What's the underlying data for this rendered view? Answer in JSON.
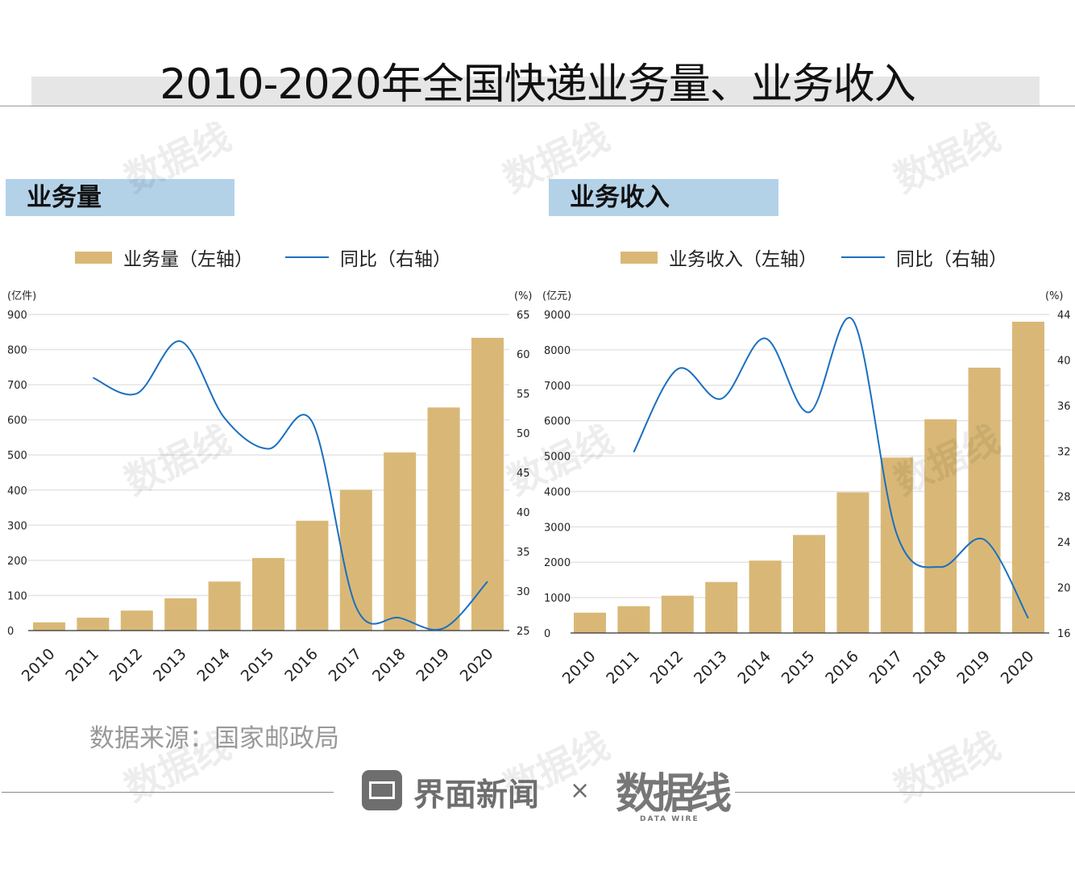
{
  "title": "2010-2020年全国快递业务量、业务收入",
  "source": "数据来源：国家邮政局",
  "footer": {
    "brand1": "界面新闻",
    "times": "×",
    "brand2": "数据线",
    "brand2_sub": "DATA WIRE"
  },
  "watermark": "数据线",
  "colors": {
    "bar": "#d9b877",
    "line": "#1a6fc0"
  },
  "chart_data": [
    {
      "type": "bar+line",
      "section_title": "业务量",
      "legend": [
        "业务量（左轴）",
        "同比（右轴）"
      ],
      "ylabel_left": "(亿件)",
      "ylabel_right": "(%)",
      "categories": [
        "2010",
        "2011",
        "2012",
        "2013",
        "2014",
        "2015",
        "2016",
        "2017",
        "2018",
        "2019",
        "2020"
      ],
      "bars": [
        23.4,
        36.7,
        56.9,
        91.9,
        139.6,
        206.7,
        312.8,
        400.6,
        507.1,
        635.2,
        833.6
      ],
      "line": [
        null,
        57.0,
        55.0,
        61.6,
        51.9,
        48.0,
        51.4,
        28.0,
        26.6,
        25.3,
        31.2
      ],
      "ylim_left": [
        0,
        900
      ],
      "yticks_left": [
        0,
        100,
        200,
        300,
        400,
        500,
        600,
        700,
        800,
        900
      ],
      "ylim_right": [
        25,
        65
      ],
      "yticks_right": [
        25,
        30,
        35,
        40,
        45,
        50,
        55,
        60,
        65
      ]
    },
    {
      "type": "bar+line",
      "section_title": "业务收入",
      "legend": [
        "业务收入（左轴）",
        "同比（右轴）"
      ],
      "ylabel_left": "(亿元)",
      "ylabel_right": "(%)",
      "categories": [
        "2010",
        "2011",
        "2012",
        "2013",
        "2014",
        "2015",
        "2016",
        "2017",
        "2018",
        "2019",
        "2020"
      ],
      "bars": [
        574.6,
        758.0,
        1055.3,
        1441.7,
        2045.4,
        2769.6,
        3974.4,
        4957.1,
        6038.4,
        7497.8,
        8795.4
      ],
      "line": [
        null,
        31.9,
        39.2,
        36.6,
        41.9,
        35.4,
        43.5,
        24.7,
        21.8,
        24.2,
        17.3
      ],
      "ylim_left": [
        0,
        9000
      ],
      "yticks_left": [
        0,
        1000,
        2000,
        3000,
        4000,
        5000,
        6000,
        7000,
        8000,
        9000
      ],
      "ylim_right": [
        16,
        44
      ],
      "yticks_right": [
        16,
        20,
        24,
        28,
        32,
        36,
        40,
        44
      ]
    }
  ]
}
